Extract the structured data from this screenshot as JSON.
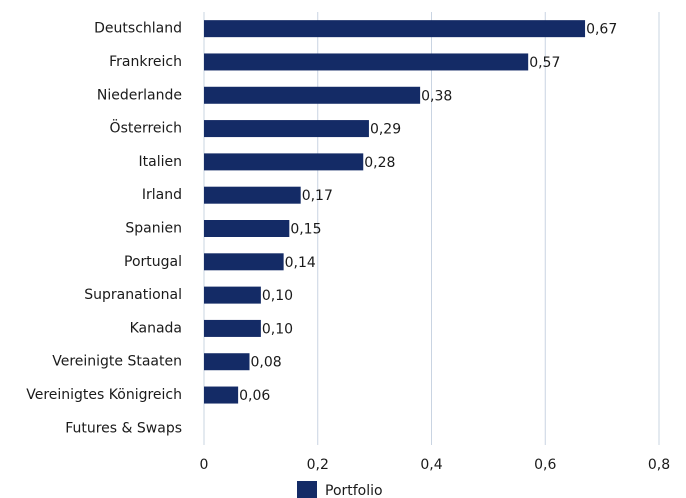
{
  "chart_data": {
    "type": "bar",
    "orientation": "horizontal",
    "categories": [
      "Deutschland",
      "Frankreich",
      "Niederlande",
      "Österreich",
      "Italien",
      "Irland",
      "Spanien",
      "Portugal",
      "Supranational",
      "Kanada",
      "Vereinigte Staaten",
      "Vereinigtes Königreich",
      "Futures & Swaps"
    ],
    "series": [
      {
        "name": "Portfolio",
        "color": "#142b66",
        "values": [
          0.67,
          0.57,
          0.38,
          0.29,
          0.28,
          0.17,
          0.15,
          0.14,
          0.1,
          0.1,
          0.08,
          0.06,
          0
        ],
        "value_labels": [
          "0,67",
          "0,57",
          "0,38",
          "0,29",
          "0,28",
          "0,17",
          "0,15",
          "0,14",
          "0,10",
          "0,10",
          "0,08",
          "0,06",
          null
        ]
      }
    ],
    "xlim": [
      0,
      0.8
    ],
    "xticks": [
      0,
      {
        "value": 0.2,
        "label": "0,2"
      },
      {
        "value": 0.4,
        "label": "0,4"
      },
      {
        "value": 0.6,
        "label": "0,6"
      },
      {
        "value": 0.8,
        "label": "0,8"
      }
    ],
    "grid": true,
    "legend": "bottom"
  }
}
